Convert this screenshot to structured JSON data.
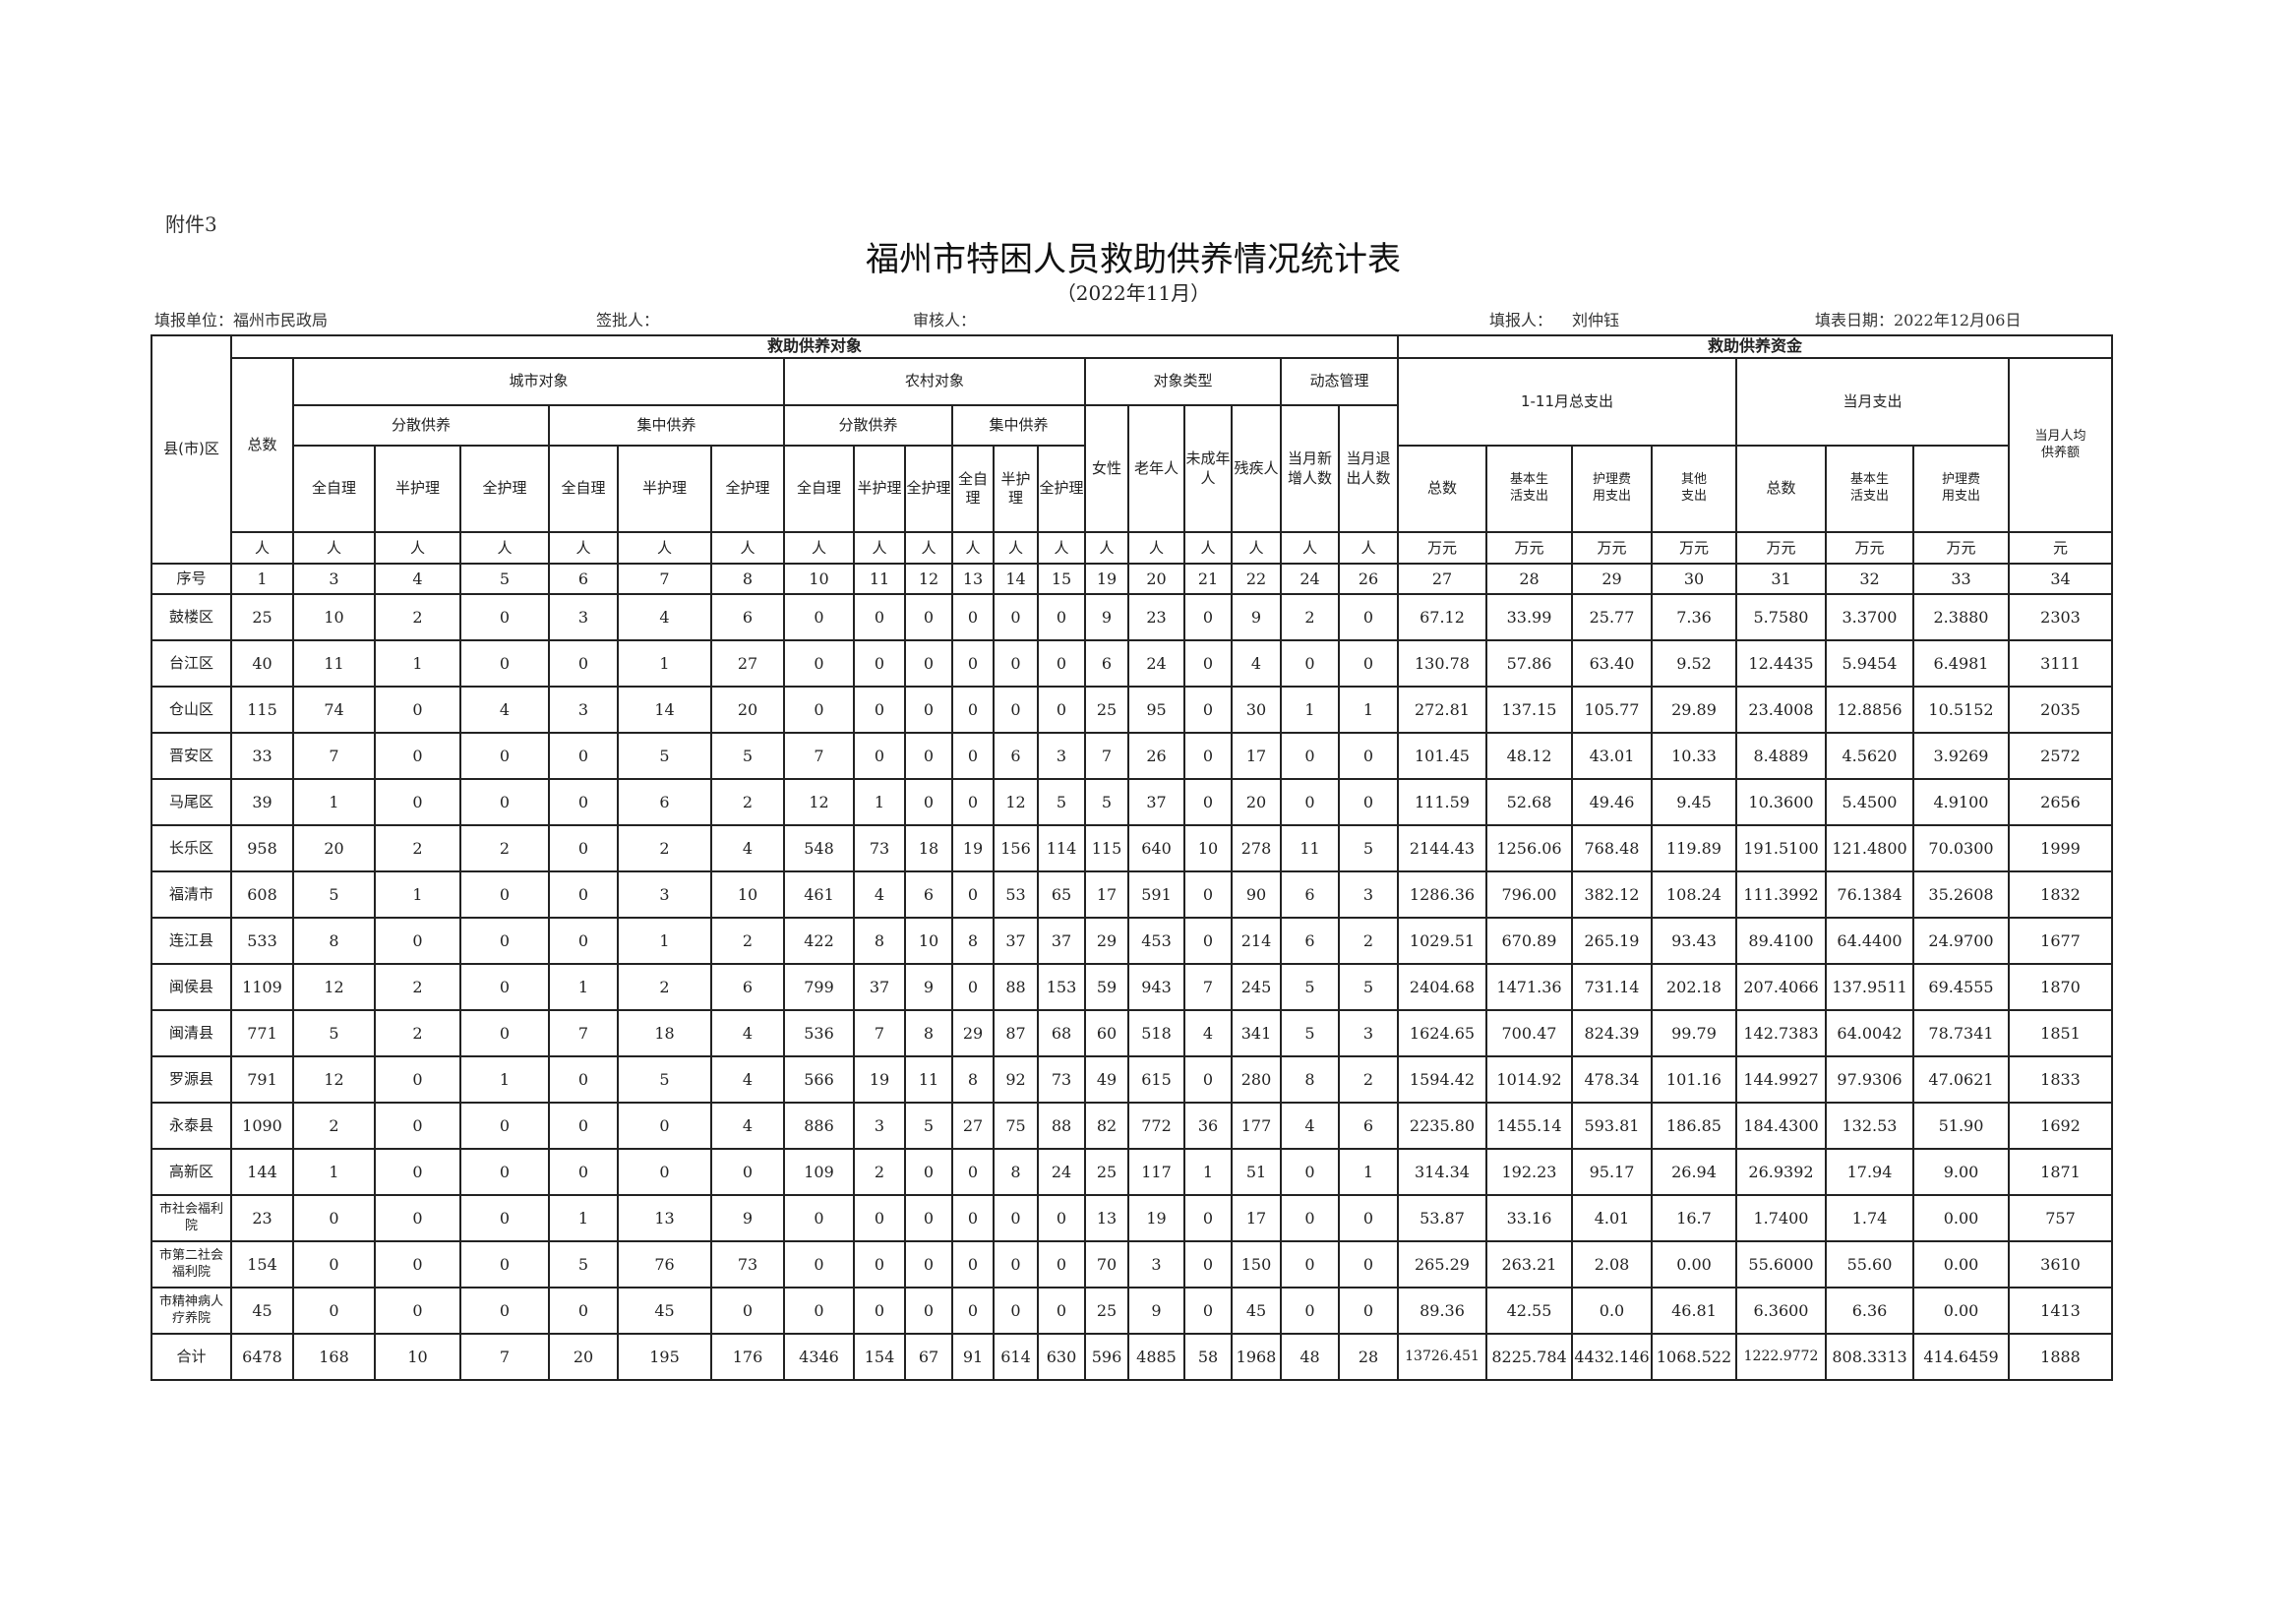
{
  "attachment": "附件3",
  "title": "福州市特困人员救助供养情况统计表",
  "subtitle": "（2022年11月）",
  "info": {
    "unit": "填报单位：福州市民政局",
    "approver": "签批人：",
    "reviewer": "审核人：",
    "reporter_label": "填报人：",
    "reporter": "刘仲钰",
    "date": "填表日期：2022年12月06日"
  },
  "header": {
    "county": "县(市)区",
    "objects": "救助供养对象",
    "funds": "救助供养资金",
    "total": "总数",
    "urban": "城市对象",
    "rural": "农村对象",
    "type": "对象类型",
    "dynamic": "动态管理",
    "exp_total": "1-11月总支出",
    "exp_month": "当月支出",
    "per_capita": "当月人均供养额",
    "dispersed": "分散供养",
    "centralized": "集中供养",
    "female": "女性",
    "elderly": "老年人",
    "minor": "未成年人",
    "disabled": "残疾人",
    "new": "当月新增人数",
    "exit": "当月退出人数",
    "self_care": "全自理",
    "semi_care": "半护理",
    "full_care": "全护理",
    "exp_sum": "总数",
    "basic": "基本生活支出",
    "nursing": "护理费用支出",
    "other": "其他支出",
    "seq_label": "序号"
  },
  "units": [
    "人",
    "人",
    "人",
    "人",
    "人",
    "人",
    "人",
    "人",
    "人",
    "人",
    "人",
    "人",
    "人",
    "人",
    "人",
    "人",
    "人",
    "人",
    "人",
    "万元",
    "万元",
    "万元",
    "万元",
    "万元",
    "万元",
    "万元",
    "元"
  ],
  "seq": [
    "1",
    "3",
    "4",
    "5",
    "6",
    "7",
    "8",
    "10",
    "11",
    "12",
    "13",
    "14",
    "15",
    "19",
    "20",
    "21",
    "22",
    "24",
    "26",
    "27",
    "28",
    "29",
    "30",
    "31",
    "32",
    "33",
    "34"
  ],
  "rows": [
    {
      "name": "鼓楼区",
      "values": [
        "25",
        "10",
        "2",
        "0",
        "3",
        "4",
        "6",
        "0",
        "0",
        "0",
        "0",
        "0",
        "0",
        "9",
        "23",
        "0",
        "9",
        "2",
        "0",
        "67.12",
        "33.99",
        "25.77",
        "7.36",
        "5.7580",
        "3.3700",
        "2.3880",
        "2303"
      ]
    },
    {
      "name": "台江区",
      "values": [
        "40",
        "11",
        "1",
        "0",
        "0",
        "1",
        "27",
        "0",
        "0",
        "0",
        "0",
        "0",
        "0",
        "6",
        "24",
        "0",
        "4",
        "0",
        "0",
        "130.78",
        "57.86",
        "63.40",
        "9.52",
        "12.4435",
        "5.9454",
        "6.4981",
        "3111"
      ]
    },
    {
      "name": "仓山区",
      "values": [
        "115",
        "74",
        "0",
        "4",
        "3",
        "14",
        "20",
        "0",
        "0",
        "0",
        "0",
        "0",
        "0",
        "25",
        "95",
        "0",
        "30",
        "1",
        "1",
        "272.81",
        "137.15",
        "105.77",
        "29.89",
        "23.4008",
        "12.8856",
        "10.5152",
        "2035"
      ]
    },
    {
      "name": "晋安区",
      "values": [
        "33",
        "7",
        "0",
        "0",
        "0",
        "5",
        "5",
        "7",
        "0",
        "0",
        "0",
        "6",
        "3",
        "7",
        "26",
        "0",
        "17",
        "0",
        "0",
        "101.45",
        "48.12",
        "43.01",
        "10.33",
        "8.4889",
        "4.5620",
        "3.9269",
        "2572"
      ]
    },
    {
      "name": "马尾区",
      "values": [
        "39",
        "1",
        "0",
        "0",
        "0",
        "6",
        "2",
        "12",
        "1",
        "0",
        "0",
        "12",
        "5",
        "5",
        "37",
        "0",
        "20",
        "0",
        "0",
        "111.59",
        "52.68",
        "49.46",
        "9.45",
        "10.3600",
        "5.4500",
        "4.9100",
        "2656"
      ]
    },
    {
      "name": "长乐区",
      "values": [
        "958",
        "20",
        "2",
        "2",
        "0",
        "2",
        "4",
        "548",
        "73",
        "18",
        "19",
        "156",
        "114",
        "115",
        "640",
        "10",
        "278",
        "11",
        "5",
        "2144.43",
        "1256.06",
        "768.48",
        "119.89",
        "191.5100",
        "121.4800",
        "70.0300",
        "1999"
      ]
    },
    {
      "name": "福清市",
      "values": [
        "608",
        "5",
        "1",
        "0",
        "0",
        "3",
        "10",
        "461",
        "4",
        "6",
        "0",
        "53",
        "65",
        "17",
        "591",
        "0",
        "90",
        "6",
        "3",
        "1286.36",
        "796.00",
        "382.12",
        "108.24",
        "111.3992",
        "76.1384",
        "35.2608",
        "1832"
      ]
    },
    {
      "name": "连江县",
      "values": [
        "533",
        "8",
        "0",
        "0",
        "0",
        "1",
        "2",
        "422",
        "8",
        "10",
        "8",
        "37",
        "37",
        "29",
        "453",
        "0",
        "214",
        "6",
        "2",
        "1029.51",
        "670.89",
        "265.19",
        "93.43",
        "89.4100",
        "64.4400",
        "24.9700",
        "1677"
      ]
    },
    {
      "name": "闽侯县",
      "values": [
        "1109",
        "12",
        "2",
        "0",
        "1",
        "2",
        "6",
        "799",
        "37",
        "9",
        "0",
        "88",
        "153",
        "59",
        "943",
        "7",
        "245",
        "5",
        "5",
        "2404.68",
        "1471.36",
        "731.14",
        "202.18",
        "207.4066",
        "137.9511",
        "69.4555",
        "1870"
      ]
    },
    {
      "name": "闽清县",
      "values": [
        "771",
        "5",
        "2",
        "0",
        "7",
        "18",
        "4",
        "536",
        "7",
        "8",
        "29",
        "87",
        "68",
        "60",
        "518",
        "4",
        "341",
        "5",
        "3",
        "1624.65",
        "700.47",
        "824.39",
        "99.79",
        "142.7383",
        "64.0042",
        "78.7341",
        "1851"
      ]
    },
    {
      "name": "罗源县",
      "values": [
        "791",
        "12",
        "0",
        "1",
        "0",
        "5",
        "4",
        "566",
        "19",
        "11",
        "8",
        "92",
        "73",
        "49",
        "615",
        "0",
        "280",
        "8",
        "2",
        "1594.42",
        "1014.92",
        "478.34",
        "101.16",
        "144.9927",
        "97.9306",
        "47.0621",
        "1833"
      ]
    },
    {
      "name": "永泰县",
      "values": [
        "1090",
        "2",
        "0",
        "0",
        "0",
        "0",
        "4",
        "886",
        "3",
        "5",
        "27",
        "75",
        "88",
        "82",
        "772",
        "36",
        "177",
        "4",
        "6",
        "2235.80",
        "1455.14",
        "593.81",
        "186.85",
        "184.4300",
        "132.53",
        "51.90",
        "1692"
      ]
    },
    {
      "name": "高新区",
      "values": [
        "144",
        "1",
        "0",
        "0",
        "0",
        "0",
        "0",
        "109",
        "2",
        "0",
        "0",
        "8",
        "24",
        "25",
        "117",
        "1",
        "51",
        "0",
        "1",
        "314.34",
        "192.23",
        "95.17",
        "26.94",
        "26.9392",
        "17.94",
        "9.00",
        "1871"
      ]
    },
    {
      "name": "市社会福利院",
      "values": [
        "23",
        "0",
        "0",
        "0",
        "1",
        "13",
        "9",
        "0",
        "0",
        "0",
        "0",
        "0",
        "0",
        "13",
        "19",
        "0",
        "17",
        "0",
        "0",
        "53.87",
        "33.16",
        "4.01",
        "16.7",
        "1.7400",
        "1.74",
        "0.00",
        "757"
      ]
    },
    {
      "name": "市第二社会福利院",
      "values": [
        "154",
        "0",
        "0",
        "0",
        "5",
        "76",
        "73",
        "0",
        "0",
        "0",
        "0",
        "0",
        "0",
        "70",
        "3",
        "0",
        "150",
        "0",
        "0",
        "265.29",
        "263.21",
        "2.08",
        "0.00",
        "55.6000",
        "55.60",
        "0.00",
        "3610"
      ]
    },
    {
      "name": "市精神病人疗养院",
      "values": [
        "45",
        "0",
        "0",
        "0",
        "0",
        "45",
        "0",
        "0",
        "0",
        "0",
        "0",
        "0",
        "0",
        "25",
        "9",
        "0",
        "45",
        "0",
        "0",
        "89.36",
        "42.55",
        "0.0",
        "46.81",
        "6.3600",
        "6.36",
        "0.00",
        "1413"
      ]
    },
    {
      "name": "合计",
      "values": [
        "6478",
        "168",
        "10",
        "7",
        "20",
        "195",
        "176",
        "4346",
        "154",
        "67",
        "91",
        "614",
        "630",
        "596",
        "4885",
        "58",
        "1968",
        "48",
        "28",
        "13726.451",
        "8225.784",
        "4432.146",
        "1068.522",
        "1222.9772",
        "808.3313",
        "414.6459",
        "1888"
      ]
    }
  ]
}
